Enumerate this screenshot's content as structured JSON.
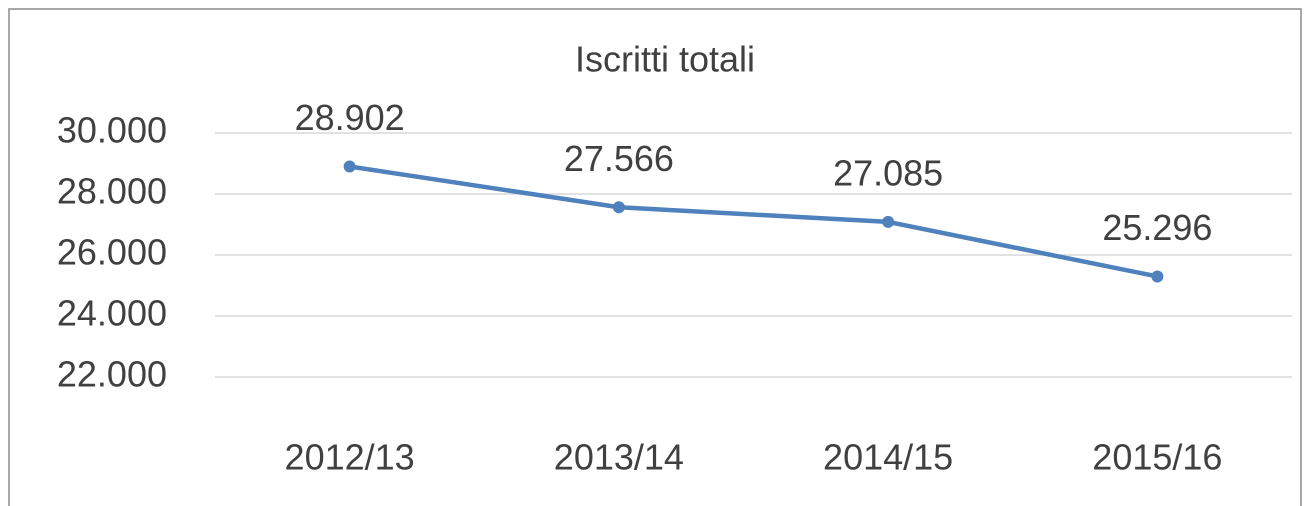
{
  "chart_data": {
    "type": "line",
    "title": "Iscritti totali",
    "categories": [
      "2012/13",
      "2013/14",
      "2014/15",
      "2015/16"
    ],
    "values": [
      28902,
      27566,
      27085,
      25296
    ],
    "value_labels": [
      "28.902",
      "27.566",
      "27.085",
      "25.296"
    ],
    "color": "#4f81bd",
    "ylim": [
      22000,
      30000
    ],
    "yticks": [
      {
        "value": 22000,
        "label": "22.000"
      },
      {
        "value": 24000,
        "label": "24.000"
      },
      {
        "value": 26000,
        "label": "26.000"
      },
      {
        "value": 28000,
        "label": "28.000"
      },
      {
        "value": 30000,
        "label": "30.000"
      }
    ],
    "grid": true
  }
}
